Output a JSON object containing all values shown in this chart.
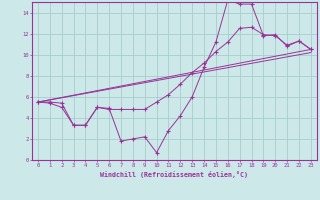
{
  "background_color": "#cce8e8",
  "grid_color": "#a8cccc",
  "line_color": "#993399",
  "xlabel": "Windchill (Refroidissement éolien,°C)",
  "xlim": [
    -0.5,
    23.5
  ],
  "ylim": [
    0,
    15
  ],
  "xticks": [
    0,
    1,
    2,
    3,
    4,
    5,
    6,
    7,
    8,
    9,
    10,
    11,
    12,
    13,
    14,
    15,
    16,
    17,
    18,
    19,
    20,
    21,
    22,
    23
  ],
  "yticks": [
    0,
    2,
    4,
    6,
    8,
    10,
    12,
    14
  ],
  "line1_x": [
    0,
    1,
    2,
    3,
    4,
    5,
    6,
    7,
    8,
    9,
    10,
    11,
    12,
    13,
    14,
    15,
    16,
    17,
    18,
    19,
    20,
    21,
    22,
    23
  ],
  "line1_y": [
    5.5,
    5.5,
    5.4,
    3.3,
    3.3,
    5.0,
    4.9,
    1.8,
    2.0,
    2.2,
    0.7,
    2.8,
    4.2,
    6.0,
    8.8,
    11.2,
    15.2,
    14.8,
    14.8,
    11.8,
    11.9,
    10.8,
    11.3,
    10.5
  ],
  "line2_x": [
    0,
    1,
    2,
    3,
    4,
    5,
    6,
    7,
    8,
    9,
    10,
    11,
    12,
    13,
    14,
    15,
    16,
    17,
    18,
    19,
    20,
    21,
    22,
    23
  ],
  "line2_y": [
    5.5,
    5.4,
    5.0,
    3.3,
    3.3,
    5.0,
    4.8,
    4.8,
    4.8,
    4.8,
    5.5,
    6.2,
    7.2,
    8.3,
    9.2,
    10.3,
    11.2,
    12.5,
    12.6,
    11.9,
    11.8,
    10.9,
    11.3,
    10.5
  ],
  "line3_x": [
    0,
    23
  ],
  "line3_y": [
    5.5,
    10.5
  ],
  "line4_x": [
    0,
    23
  ],
  "line4_y": [
    5.5,
    10.2
  ]
}
